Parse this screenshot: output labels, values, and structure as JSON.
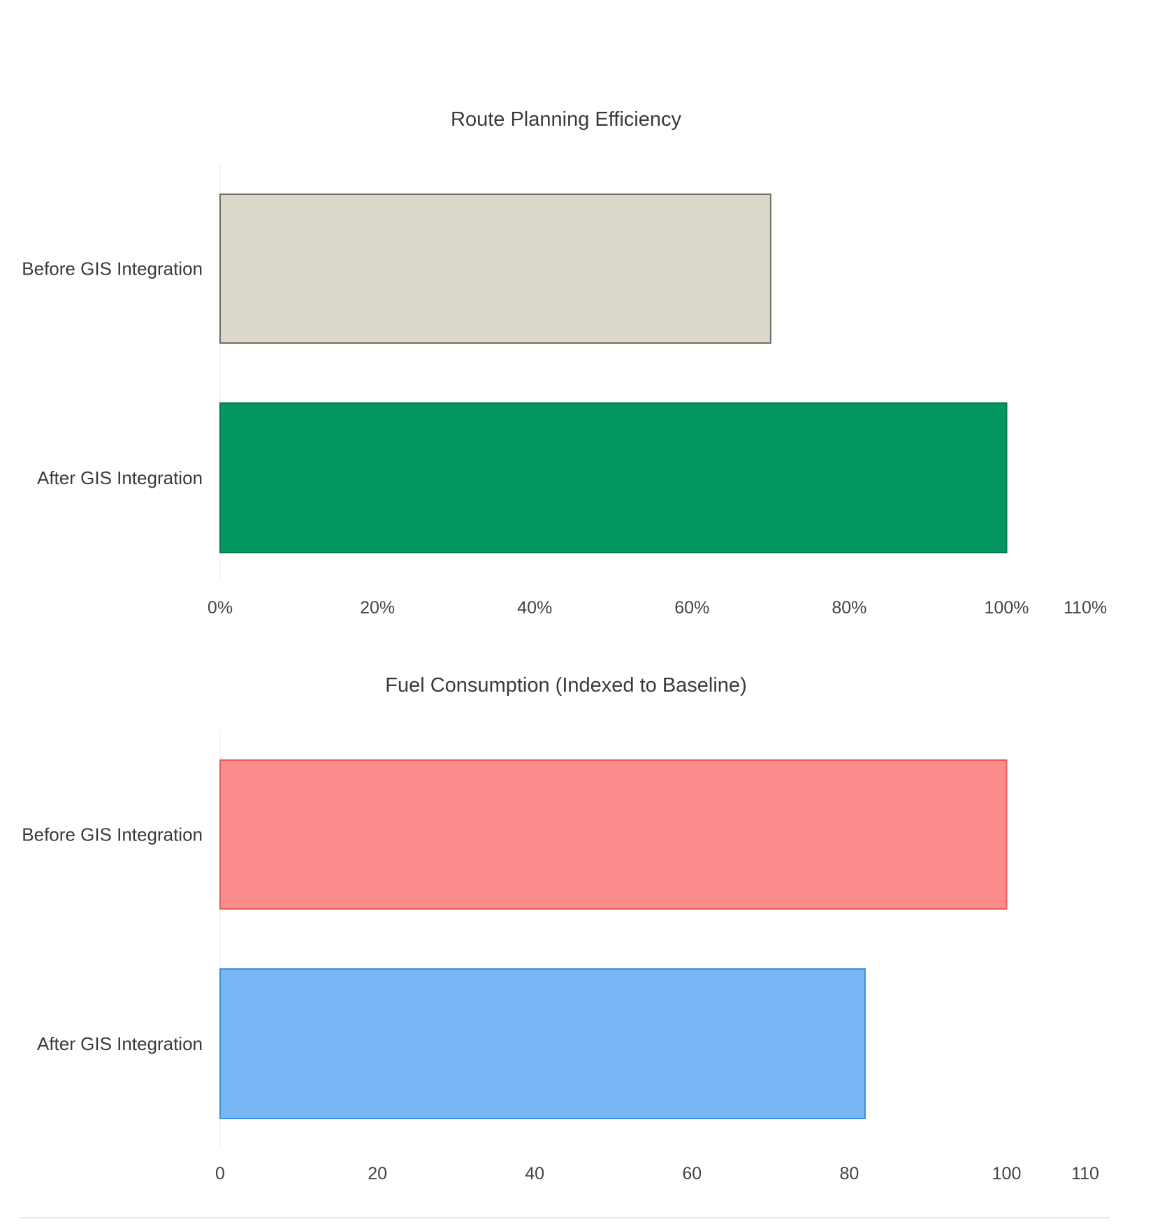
{
  "chart_data": [
    {
      "type": "bar",
      "orientation": "horizontal",
      "title": "Route Planning Efficiency",
      "categories": [
        "Before GIS Integration",
        "After GIS Integration"
      ],
      "values": [
        70,
        100
      ],
      "colors": [
        "#dbd7cb",
        "#039762"
      ],
      "border_colors": [
        "#6e6e64",
        "#027a4f"
      ],
      "xlim": [
        0,
        110
      ],
      "xticks": [
        0,
        20,
        40,
        60,
        80,
        100,
        110
      ],
      "xtick_labels": [
        "0%",
        "20%",
        "40%",
        "60%",
        "80%",
        "100%",
        "110%"
      ],
      "grid": false
    },
    {
      "type": "bar",
      "orientation": "horizontal",
      "title": "Fuel Consumption (Indexed to Baseline)",
      "categories": [
        "Before GIS Integration",
        "After GIS Integration"
      ],
      "values": [
        100,
        82
      ],
      "colors": [
        "#fc8b8b",
        "#78b6f5"
      ],
      "border_colors": [
        "#e45a5a",
        "#3a8fe0"
      ],
      "xlim": [
        0,
        110
      ],
      "xticks": [
        0,
        20,
        40,
        60,
        80,
        100,
        110
      ],
      "xtick_labels": [
        "0",
        "20",
        "40",
        "60",
        "80",
        "100",
        "110"
      ],
      "grid": false
    }
  ]
}
